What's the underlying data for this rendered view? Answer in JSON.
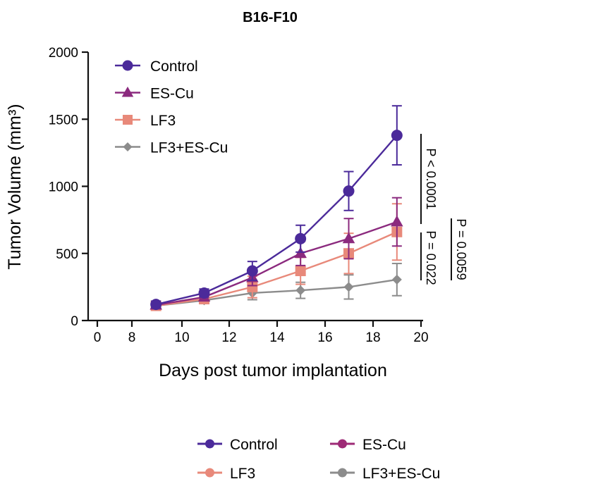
{
  "chart_data": {
    "type": "line",
    "title": "B16-F10",
    "xlabel": "Days post tumor implantation",
    "ylabel": "Tumor Volume (mm³)",
    "xlim": [
      0,
      20
    ],
    "xticks": [
      "0",
      "8",
      "10",
      "12",
      "14",
      "16",
      "18",
      "20"
    ],
    "x_axis_break": "between 0 and 8",
    "ylim": [
      0,
      2000
    ],
    "yticks": [
      "0",
      "500",
      "1000",
      "1500",
      "2000"
    ],
    "x": [
      9,
      11,
      13,
      15,
      17,
      19
    ],
    "series": [
      {
        "name": "Control",
        "color": "#4b2a9a",
        "marker": "circle",
        "values": [
          120,
          205,
          370,
          610,
          965,
          1380
        ],
        "errors": [
          25,
          30,
          70,
          100,
          145,
          220
        ]
      },
      {
        "name": "ES-Cu",
        "color": "#8b2a7e",
        "marker": "triangle",
        "values": [
          115,
          175,
          320,
          500,
          610,
          735
        ],
        "errors": [
          20,
          25,
          60,
          90,
          150,
          180
        ]
      },
      {
        "name": "LF3",
        "color": "#e8897a",
        "marker": "square",
        "values": [
          110,
          160,
          250,
          370,
          500,
          660
        ],
        "errors": [
          20,
          25,
          80,
          100,
          150,
          210
        ]
      },
      {
        "name": "LF3+ES-Cu",
        "color": "#8c8c8c",
        "marker": "diamond",
        "values": [
          110,
          150,
          205,
          225,
          250,
          305
        ],
        "errors": [
          15,
          20,
          50,
          60,
          90,
          120
        ]
      }
    ],
    "annotations": [
      "P < 0.0001",
      "P = 0.022",
      "P = 0.0059"
    ],
    "legend_top_placement": "top-left",
    "bottom_legend": [
      {
        "name": "Control",
        "color": "#4b2a9a"
      },
      {
        "name": "ES-Cu",
        "color": "#9e2a76"
      },
      {
        "name": "LF3",
        "color": "#e8897a"
      },
      {
        "name": "LF3+ES-Cu",
        "color": "#8c8c8c"
      }
    ],
    "grid": false
  }
}
